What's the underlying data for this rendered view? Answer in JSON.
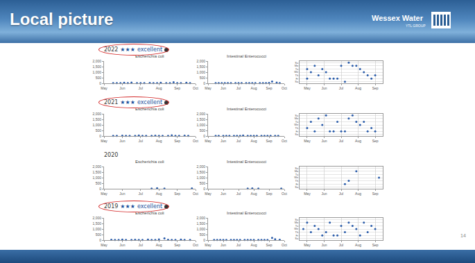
{
  "slide": {
    "title": "Local picture",
    "logo": "Wessex Water",
    "logo_sub": "YTL GROUP",
    "page": "14"
  },
  "rows": [
    {
      "year": "2022",
      "stars": "★★★",
      "rating": "excellent"
    },
    {
      "year": "2021",
      "stars": "★★★",
      "rating": "excellent"
    },
    {
      "year": "2020"
    },
    {
      "year": "2019",
      "stars": "★★★",
      "rating": "excellent"
    }
  ],
  "chart_data": [
    {
      "type": "scatter",
      "title": "Escherichia coli",
      "color": "#2a5caa",
      "marker": "circle",
      "grid": false,
      "x": [
        5.5,
        5.7,
        5.9,
        6.1,
        6.3,
        6.5,
        6.8,
        7.0,
        7.2,
        7.5,
        7.7,
        7.9,
        8.1,
        8.4,
        8.6,
        8.8,
        9.0,
        9.2,
        9.5,
        9.7
      ],
      "values": [
        20,
        10,
        10,
        40,
        20,
        60,
        10,
        20,
        10,
        30,
        10,
        20,
        50,
        20,
        10,
        90,
        20,
        10,
        40,
        20
      ],
      "xlim": [
        5,
        10
      ],
      "xticks": [
        {
          "value": 5,
          "label": "May"
        },
        {
          "value": 6,
          "label": "Jun"
        },
        {
          "value": 7,
          "label": "Jul"
        },
        {
          "value": 8,
          "label": "Aug"
        },
        {
          "value": 9,
          "label": "Sep"
        },
        {
          "value": 10,
          "label": "Oct"
        }
      ],
      "ylim": [
        0,
        2000
      ],
      "yticks": [
        0,
        500,
        {
          "value": 1000,
          "label": "1,000"
        },
        {
          "value": 1500,
          "label": "1,500"
        },
        {
          "value": 2000,
          "label": "2,000"
        }
      ]
    },
    {
      "type": "scatter",
      "title": "Intestinal Enterococci",
      "color": "#2a5caa",
      "marker": "circle",
      "grid": false,
      "x": [
        5.5,
        5.7,
        5.9,
        6.1,
        6.3,
        6.5,
        6.8,
        7.0,
        7.2,
        7.5,
        7.7,
        7.9,
        8.1,
        8.4,
        8.6,
        8.8,
        9.0,
        9.2,
        9.5,
        9.7
      ],
      "values": [
        10,
        10,
        10,
        20,
        10,
        20,
        10,
        10,
        10,
        10,
        20,
        10,
        10,
        10,
        20,
        10,
        30,
        150,
        60,
        20
      ],
      "xlim": [
        5,
        10
      ],
      "xticks": [
        {
          "value": 5,
          "label": "May"
        },
        {
          "value": 6,
          "label": "Jun"
        },
        {
          "value": 7,
          "label": "Jul"
        },
        {
          "value": 8,
          "label": "Aug"
        },
        {
          "value": 9,
          "label": "Sep"
        },
        {
          "value": 10,
          "label": "Oct"
        }
      ],
      "ylim": [
        0,
        2000
      ],
      "yticks": [
        0,
        500,
        {
          "value": 1000,
          "label": "1,000"
        },
        {
          "value": 1500,
          "label": "1,500"
        },
        {
          "value": 2000,
          "label": "2,000"
        }
      ]
    },
    {
      "type": "calendar",
      "color": "#2a5caa",
      "marker": "circle",
      "grid": true,
      "x": [
        2,
        2,
        3,
        4,
        5,
        6,
        7,
        8,
        9,
        10,
        11,
        12,
        13,
        14,
        15,
        16,
        17,
        18,
        19,
        20
      ],
      "days": [
        "Tu",
        "Fr",
        "We",
        "Mo",
        "Th",
        "Tu",
        "We",
        "Fr",
        "Fr",
        "Fr",
        "Mo",
        "Sa",
        "Su",
        "Mo",
        "Mo",
        "Tu",
        "We",
        "Th",
        "Fr",
        "Th"
      ],
      "day_labels": [
        "Su",
        "Mo",
        "Tu",
        "We",
        "Th",
        "Fr",
        "Sa"
      ],
      "xlim": [
        0,
        22
      ],
      "xticks": [
        {
          "value": 2,
          "label": "May"
        },
        {
          "value": 6.5,
          "label": "Jun"
        },
        {
          "value": 11,
          "label": "Jul"
        },
        {
          "value": 15.5,
          "label": "Aug"
        },
        {
          "value": 20,
          "label": "Sep"
        }
      ]
    },
    {
      "type": "scatter",
      "title": "Escherichia coli",
      "color": "#2a5caa",
      "marker": "circle",
      "grid": false,
      "x": [
        5.5,
        5.7,
        6.0,
        6.2,
        6.4,
        6.7,
        6.9,
        7.1,
        7.3,
        7.6,
        7.8,
        8.0,
        8.2,
        8.5,
        8.7,
        8.9,
        9.1,
        9.4,
        9.6
      ],
      "values": [
        20,
        10,
        30,
        10,
        20,
        10,
        40,
        10,
        20,
        10,
        30,
        10,
        20,
        10,
        60,
        20,
        10,
        30,
        10
      ],
      "xlim": [
        5,
        10
      ],
      "xticks": [
        {
          "value": 5,
          "label": "May"
        },
        {
          "value": 6,
          "label": "Jun"
        },
        {
          "value": 7,
          "label": "Jul"
        },
        {
          "value": 8,
          "label": "Aug"
        },
        {
          "value": 9,
          "label": "Sep"
        },
        {
          "value": 10,
          "label": "Oct"
        }
      ],
      "ylim": [
        0,
        2000
      ],
      "yticks": [
        0,
        500,
        {
          "value": 1000,
          "label": "1,000"
        },
        {
          "value": 1500,
          "label": "1,500"
        },
        {
          "value": 2000,
          "label": "2,000"
        }
      ]
    },
    {
      "type": "scatter",
      "title": "Intestinal Enterococci",
      "color": "#2a5caa",
      "marker": "circle",
      "grid": false,
      "x": [
        5.5,
        5.7,
        6.0,
        6.2,
        6.4,
        6.7,
        6.9,
        7.1,
        7.3,
        7.6,
        7.8,
        8.0,
        8.2,
        8.5,
        8.7,
        8.9,
        9.1,
        9.4,
        9.6
      ],
      "values": [
        10,
        20,
        10,
        10,
        10,
        20,
        10,
        10,
        40,
        10,
        10,
        20,
        10,
        10,
        10,
        20,
        10,
        10,
        10
      ],
      "xlim": [
        5,
        10
      ],
      "xticks": [
        {
          "value": 5,
          "label": "May"
        },
        {
          "value": 6,
          "label": "Jun"
        },
        {
          "value": 7,
          "label": "Jul"
        },
        {
          "value": 8,
          "label": "Aug"
        },
        {
          "value": 9,
          "label": "Sep"
        },
        {
          "value": 10,
          "label": "Oct"
        }
      ],
      "ylim": [
        0,
        2000
      ],
      "yticks": [
        0,
        500,
        {
          "value": 1000,
          "label": "1,000"
        },
        {
          "value": 1500,
          "label": "1,500"
        },
        {
          "value": 2000,
          "label": "2,000"
        }
      ]
    },
    {
      "type": "calendar",
      "color": "#2a5caa",
      "marker": "circle",
      "grid": true,
      "x": [
        2,
        3,
        4,
        5,
        6,
        7,
        8,
        9,
        10,
        11,
        12,
        13,
        14,
        15,
        16,
        17,
        18,
        19,
        20
      ],
      "days": [
        "Th",
        "Tu",
        "Fr",
        "Mo",
        "We",
        "Su",
        "Fr",
        "Fr",
        "Tu",
        "Fr",
        "Fr",
        "Mo",
        "Su",
        "Tu",
        "We",
        "Tu",
        "Fr",
        "Th",
        "Fr"
      ],
      "day_labels": [
        "Su",
        "Mo",
        "Tu",
        "We",
        "Th",
        "Fr",
        "Sa"
      ],
      "xlim": [
        0,
        22
      ],
      "xticks": [
        {
          "value": 2,
          "label": "May"
        },
        {
          "value": 6.5,
          "label": "Jun"
        },
        {
          "value": 11,
          "label": "Jul"
        },
        {
          "value": 15.5,
          "label": "Aug"
        },
        {
          "value": 20,
          "label": "Sep"
        }
      ]
    },
    {
      "type": "scatter",
      "title": "Escherichia coli",
      "color": "#2a5caa",
      "marker": "circle",
      "grid": false,
      "x": [
        7.6,
        7.9,
        8.3,
        9.8
      ],
      "values": [
        20,
        40,
        10,
        30
      ],
      "xlim": [
        5,
        10
      ],
      "xticks": [
        {
          "value": 5,
          "label": "May"
        },
        {
          "value": 6,
          "label": "Jun"
        },
        {
          "value": 7,
          "label": "Jul"
        },
        {
          "value": 8,
          "label": "Aug"
        },
        {
          "value": 9,
          "label": "Sep"
        },
        {
          "value": 10,
          "label": "Oct"
        }
      ],
      "ylim": [
        0,
        2000
      ],
      "yticks": [
        0,
        500,
        {
          "value": 1000,
          "label": "1,000"
        },
        {
          "value": 1500,
          "label": "1,500"
        },
        {
          "value": 2000,
          "label": "2,000"
        }
      ]
    },
    {
      "type": "scatter",
      "title": "Intestinal Enterococci",
      "color": "#2a5caa",
      "marker": "circle",
      "grid": false,
      "x": [
        7.6,
        7.9,
        8.3,
        9.8
      ],
      "values": [
        10,
        30,
        10,
        20
      ],
      "xlim": [
        5,
        10
      ],
      "xticks": [
        {
          "value": 5,
          "label": "May"
        },
        {
          "value": 6,
          "label": "Jun"
        },
        {
          "value": 7,
          "label": "Jul"
        },
        {
          "value": 8,
          "label": "Aug"
        },
        {
          "value": 9,
          "label": "Sep"
        },
        {
          "value": 10,
          "label": "Oct"
        }
      ],
      "ylim": [
        0,
        2000
      ],
      "yticks": [
        0,
        500,
        {
          "value": 1000,
          "label": "1,000"
        },
        {
          "value": 1500,
          "label": "1,500"
        },
        {
          "value": 2000,
          "label": "2,000"
        }
      ]
    },
    {
      "type": "calendar",
      "color": "#2a5caa",
      "marker": "circle",
      "grid": true,
      "x": [
        12,
        13,
        15,
        21
      ],
      "days": [
        "Fr",
        "Th",
        "Mo",
        "We"
      ],
      "day_labels": [
        "Su",
        "Mo",
        "Tu",
        "We",
        "Th",
        "Fr",
        "Sa"
      ],
      "xlim": [
        0,
        22
      ],
      "xticks": [
        {
          "value": 2,
          "label": "May"
        },
        {
          "value": 6.5,
          "label": "Jun"
        },
        {
          "value": 11,
          "label": "Jul"
        },
        {
          "value": 15.5,
          "label": "Aug"
        },
        {
          "value": 20,
          "label": "Sep"
        }
      ]
    },
    {
      "type": "scatter",
      "title": "Escherichia coli",
      "color": "#2a5caa",
      "marker": "circle",
      "grid": false,
      "x": [
        5.4,
        5.6,
        5.8,
        6.0,
        6.2,
        6.5,
        6.7,
        6.9,
        7.1,
        7.4,
        7.6,
        7.8,
        8.0,
        8.3,
        8.5,
        8.7,
        8.9,
        9.2,
        9.4,
        9.7
      ],
      "values": [
        30,
        20,
        10,
        50,
        20,
        10,
        30,
        20,
        10,
        40,
        20,
        10,
        60,
        150,
        30,
        20,
        10,
        40,
        20,
        10
      ],
      "xlim": [
        5,
        10
      ],
      "xticks": [
        {
          "value": 5,
          "label": "May"
        },
        {
          "value": 6,
          "label": "Jun"
        },
        {
          "value": 7,
          "label": "Jul"
        },
        {
          "value": 8,
          "label": "Aug"
        },
        {
          "value": 9,
          "label": "Sep"
        },
        {
          "value": 10,
          "label": "Oct"
        }
      ],
      "ylim": [
        0,
        2000
      ],
      "yticks": [
        0,
        500,
        {
          "value": 1000,
          "label": "1,000"
        },
        {
          "value": 1500,
          "label": "1,500"
        },
        {
          "value": 2000,
          "label": "2,000"
        }
      ]
    },
    {
      "type": "scatter",
      "title": "Intestinal Enterococci",
      "color": "#2a5caa",
      "marker": "circle",
      "grid": false,
      "x": [
        5.4,
        5.6,
        5.8,
        6.0,
        6.2,
        6.5,
        6.7,
        6.9,
        7.1,
        7.4,
        7.6,
        7.8,
        8.0,
        8.3,
        8.5,
        8.7,
        8.9,
        9.2,
        9.4,
        9.7
      ],
      "values": [
        10,
        10,
        20,
        10,
        10,
        10,
        20,
        10,
        10,
        10,
        10,
        20,
        10,
        10,
        10,
        20,
        10,
        200,
        80,
        30
      ],
      "xlim": [
        5,
        10
      ],
      "xticks": [
        {
          "value": 5,
          "label": "May"
        },
        {
          "value": 6,
          "label": "Jun"
        },
        {
          "value": 7,
          "label": "Jul"
        },
        {
          "value": 8,
          "label": "Aug"
        },
        {
          "value": 9,
          "label": "Sep"
        },
        {
          "value": 10,
          "label": "Oct"
        }
      ],
      "ylim": [
        0,
        2000
      ],
      "yticks": [
        0,
        500,
        {
          "value": 1000,
          "label": "1,000"
        },
        {
          "value": 1500,
          "label": "1,500"
        },
        {
          "value": 2000,
          "label": "2,000"
        }
      ]
    },
    {
      "type": "calendar",
      "color": "#2a5caa",
      "marker": "circle",
      "grid": true,
      "x": [
        1,
        2,
        3,
        4,
        5,
        6,
        7,
        8,
        9,
        10,
        11,
        12,
        13,
        14,
        15,
        16,
        17,
        18,
        19,
        20
      ],
      "days": [
        "We",
        "Mo",
        "Th",
        "Tu",
        "We",
        "Fr",
        "Th",
        "Mo",
        "Fr",
        "Fr",
        "Tu",
        "Th",
        "Mo",
        "Tu",
        "We",
        "Fr",
        "Mo",
        "Th",
        "Tu",
        "We"
      ],
      "day_labels": [
        "Su",
        "Mo",
        "Tu",
        "We",
        "Th",
        "Fr",
        "Sa"
      ],
      "xlim": [
        0,
        22
      ],
      "xticks": [
        {
          "value": 2,
          "label": "May"
        },
        {
          "value": 6.5,
          "label": "Jun"
        },
        {
          "value": 11,
          "label": "Jul"
        },
        {
          "value": 15.5,
          "label": "Aug"
        },
        {
          "value": 20,
          "label": "Sep"
        }
      ]
    }
  ]
}
